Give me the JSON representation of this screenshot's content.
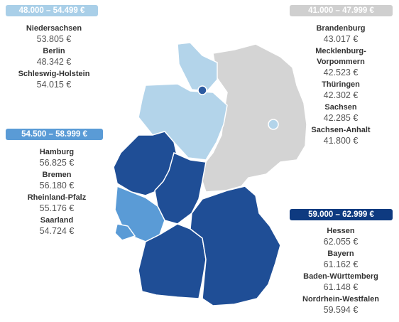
{
  "groups": [
    {
      "range": "48.000 – 54.499 €",
      "states": [
        {
          "name": "Niedersachsen",
          "value": "53.805 €"
        },
        {
          "name": "Berlin",
          "value": "48.342 €"
        },
        {
          "name": "Schleswig-Holstein",
          "value": "54.015 €"
        }
      ]
    },
    {
      "range": "54.500 – 58.999 €",
      "states": [
        {
          "name": "Hamburg",
          "value": "56.825 €"
        },
        {
          "name": "Bremen",
          "value": "56.180 €"
        },
        {
          "name": "Rheinland-Pfalz",
          "value": "55.176 €"
        },
        {
          "name": "Saarland",
          "value": "54.724 €"
        }
      ]
    },
    {
      "range": "41.000 – 47.999 €",
      "states": [
        {
          "name": "Brandenburg",
          "value": "43.017 €"
        },
        {
          "name": "Mecklenburg-\nVorpommern",
          "value": "42.523 €"
        },
        {
          "name": "Thüringen",
          "value": "42.302 €"
        },
        {
          "name": "Sachsen",
          "value": "42.285 €"
        },
        {
          "name": "Sachsen-Anhalt",
          "value": "41.800 €"
        }
      ]
    },
    {
      "range": "59.000 – 62.999 €",
      "states": [
        {
          "name": "Hessen",
          "value": "62.055 €"
        },
        {
          "name": "Bayern",
          "value": "61.162 €"
        },
        {
          "name": "Baden-Württemberg",
          "value": "61.148 €"
        },
        {
          "name": "Nordrhein-Westfalen",
          "value": "59.594 €"
        }
      ]
    }
  ]
}
